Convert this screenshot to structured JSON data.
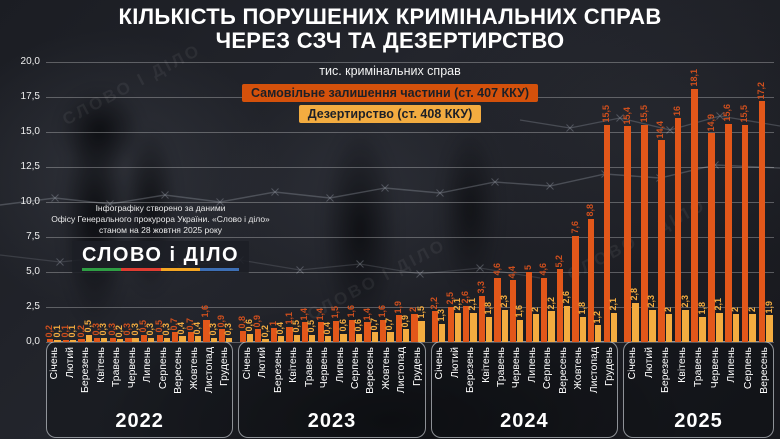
{
  "title_line1": "КІЛЬКІСТЬ ПОРУШЕНИХ КРИМІНАЛЬНИХ СПРАВ",
  "title_line2": "ЧЕРЕЗ СЗЧ ТА ДЕЗЕРТИРСТВО",
  "subtitle": "тис. кримінальних справ",
  "legend": [
    {
      "label": "Самовільне залишення частини (ст. 407 ККУ)",
      "color": "#d4510b"
    },
    {
      "label": "Дезертирство (ст. 408 ККУ)",
      "color": "#f3ac40"
    }
  ],
  "source_note": {
    "line1": "Інфографіку створено за даними",
    "line2": "Офісу Генерального прокурора України. «Слово і діло»",
    "line3": "станом на 28 жовтня 2025 року"
  },
  "logo_text": "СЛОВО і ДІЛО",
  "logo_bar_colors": [
    "#2f9e44",
    "#e03c31",
    "#f5a623",
    "#3d6fb5"
  ],
  "watermark": "СЛОВО І ДІЛО",
  "colors": {
    "bar_407": "#e2571a",
    "bar_408": "#f3ac40",
    "label_407": "#cf4f1d",
    "label_408": "#f3ac40"
  },
  "chart_data": {
    "type": "bar",
    "title": "КІЛЬКІСТЬ ПОРУШЕНИХ КРИМІНАЛЬНИХ СПРАВ ЧЕРЕЗ СЗЧ ТА ДЕЗЕРТИРСТВО",
    "ylabel": "тис. кримінальних справ",
    "ylim": [
      0,
      20
    ],
    "ytick_step": 2.5,
    "ytick_labels": [
      "0,0",
      "2,5",
      "5,0",
      "7,5",
      "10,0",
      "12,5",
      "15,0",
      "17,5",
      "20,0"
    ],
    "grid": true,
    "legend_position": "top-center",
    "series": [
      {
        "name": "Самовільне залишення частини (ст. 407 ККУ)",
        "color": "#e2571a"
      },
      {
        "name": "Дезертирство (ст. 408 ККУ)",
        "color": "#f3ac40"
      }
    ],
    "groups": [
      {
        "year": "2022",
        "months": [
          "Січень",
          "Лютий",
          "Березень",
          "Квітень",
          "Травень",
          "Червень",
          "Липень",
          "Серпень",
          "Вересень",
          "Жовтень",
          "Листопад",
          "Грудень"
        ],
        "values_407": [
          0.2,
          0.1,
          0.2,
          0.3,
          0.3,
          0.3,
          0.5,
          0.5,
          0.7,
          0.7,
          1.6,
          0.9
        ],
        "values_408": [
          0.1,
          0.1,
          0.5,
          0.3,
          0.2,
          0.3,
          0.3,
          0.3,
          0.4,
          0.4,
          0.3,
          0.3
        ]
      },
      {
        "year": "2023",
        "months": [
          "Січень",
          "Лютий",
          "Березень",
          "Квітень",
          "Травень",
          "Червень",
          "Липень",
          "Серпень",
          "Вересень",
          "Жовтень",
          "Листопад",
          "Грудень"
        ],
        "values_407": [
          0.8,
          0.9,
          1,
          1.1,
          1.4,
          1.4,
          1.5,
          1.6,
          1.4,
          1.6,
          1.9,
          2
        ],
        "values_408": [
          0.6,
          0.2,
          0.4,
          0.5,
          0.5,
          0.4,
          0.6,
          0.6,
          0.7,
          0.7,
          0.9,
          1.5
        ]
      },
      {
        "year": "2024",
        "months": [
          "Січень",
          "Лютий",
          "Березень",
          "Квітень",
          "Травень",
          "Червень",
          "Липень",
          "Серпень",
          "Вересень",
          "Жовтень",
          "Листопад",
          "Грудень"
        ],
        "values_407": [
          2.2,
          2.5,
          2.6,
          3.3,
          4.6,
          4.4,
          5,
          4.6,
          5.2,
          7.6,
          8.8,
          15.5
        ],
        "values_408": [
          1.3,
          2.1,
          2.1,
          1.8,
          2.3,
          1.6,
          2,
          2.2,
          2.6,
          1.8,
          1.2,
          2.1
        ]
      },
      {
        "year": "2025",
        "months": [
          "Січень",
          "Лютий",
          "Березень",
          "Квітень",
          "Травень",
          "Червень",
          "Липень",
          "Серпень",
          "Вересень"
        ],
        "values_407": [
          15.4,
          15.5,
          14.4,
          16,
          18.1,
          14.9,
          15.6,
          15.5,
          17.2
        ],
        "values_408": [
          2.8,
          2.3,
          2,
          2.3,
          1.8,
          2.1,
          2,
          2,
          1.9
        ]
      }
    ]
  }
}
